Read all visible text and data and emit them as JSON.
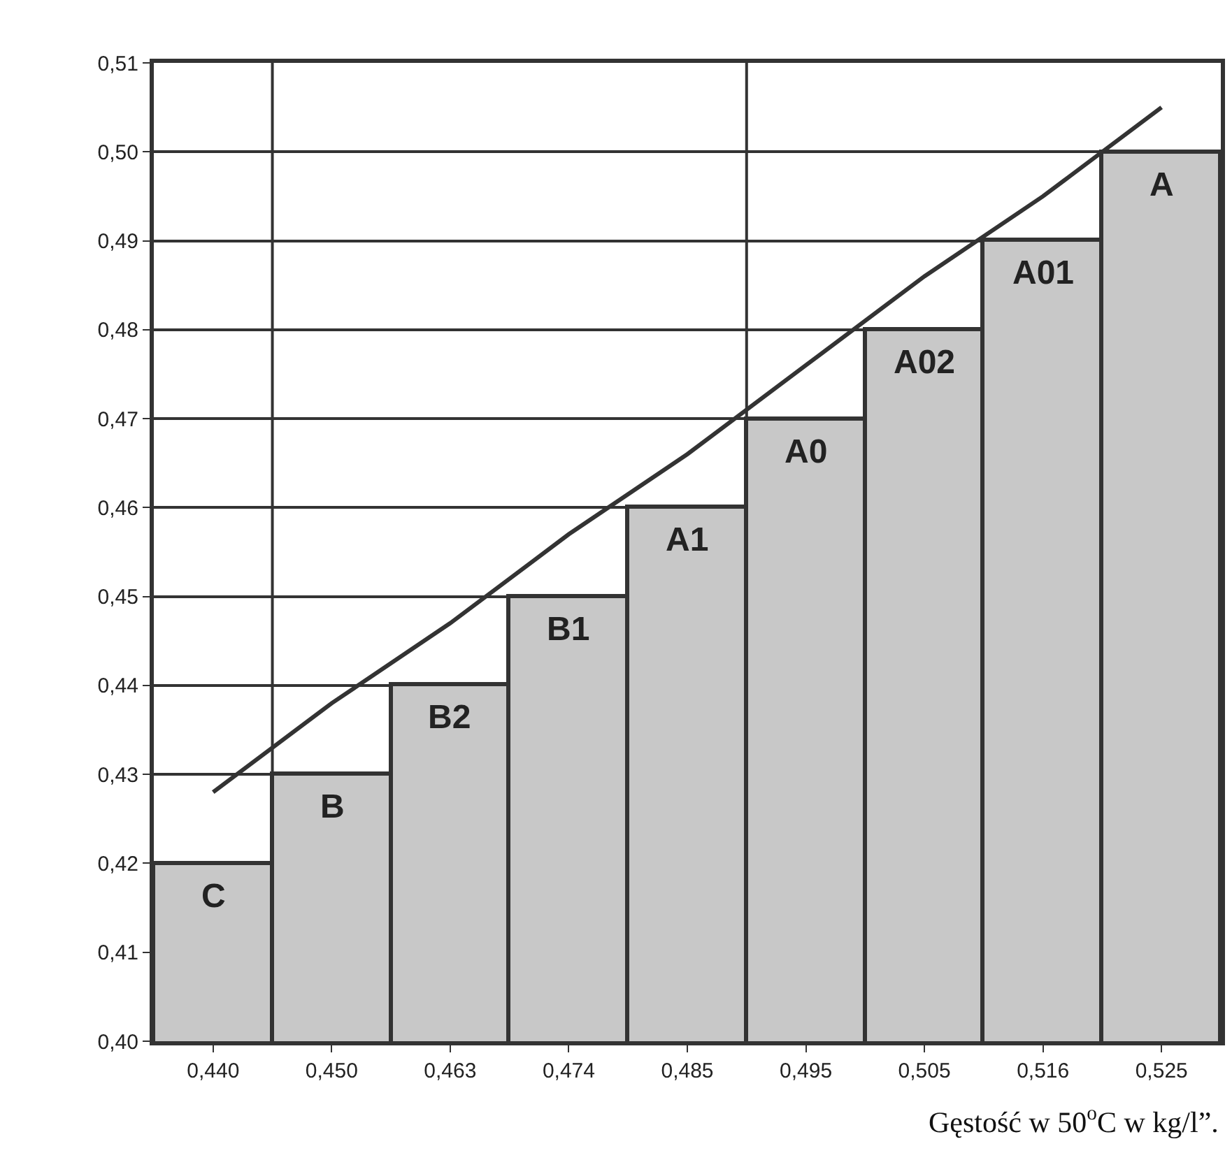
{
  "chart_data": {
    "type": "bar",
    "categories": [
      "0,440",
      "0,450",
      "0,463",
      "0,474",
      "0,485",
      "0,495",
      "0,505",
      "0,516",
      "0,525"
    ],
    "series": [
      {
        "color": "#c8c8c8",
        "values": [
          0.42,
          0.43,
          0.44,
          0.45,
          0.46,
          0.47,
          0.48,
          0.49,
          0.5
        ]
      },
      {
        "type": "line",
        "color": "#333333",
        "values": [
          0.428,
          0.438,
          0.447,
          0.457,
          0.466,
          0.476,
          0.486,
          0.495,
          0.505
        ]
      }
    ],
    "xlabel": "Gęstość w 50$^{o}$C w kg/l”.",
    "ylim": [
      0.4,
      0.51
    ],
    "yticks": [
      {
        "value": 0.4,
        "label": "0,40"
      },
      {
        "value": 0.41,
        "label": "0,41"
      },
      {
        "value": 0.42,
        "label": "0,42"
      },
      {
        "value": 0.43,
        "label": "0,43"
      },
      {
        "value": 0.44,
        "label": "0,44"
      },
      {
        "value": 0.45,
        "label": "0,45"
      },
      {
        "value": 0.46,
        "label": "0,46"
      },
      {
        "value": 0.47,
        "label": "0,47"
      },
      {
        "value": 0.48,
        "label": "0,48"
      },
      {
        "value": 0.49,
        "label": "0,49"
      },
      {
        "value": 0.5,
        "label": "0,50"
      },
      {
        "value": 0.51,
        "label": "0,51"
      }
    ],
    "annotations": [
      {
        "text": "C",
        "x": "0,440",
        "y": 0.42
      },
      {
        "text": "B",
        "x": "0,450",
        "y": 0.43
      },
      {
        "text": "B2",
        "x": "0,463",
        "y": 0.44
      },
      {
        "text": "B1",
        "x": "0,474",
        "y": 0.45
      },
      {
        "text": "A1",
        "x": "0,485",
        "y": 0.46
      },
      {
        "text": "A0",
        "x": "0,495",
        "y": 0.47
      },
      {
        "text": "A02",
        "x": "0,505",
        "y": 0.48
      },
      {
        "text": "A01",
        "x": "0,516",
        "y": 0.49
      },
      {
        "text": "A",
        "x": "0,525",
        "y": 0.5
      }
    ],
    "grid": "y",
    "legend": false
  }
}
